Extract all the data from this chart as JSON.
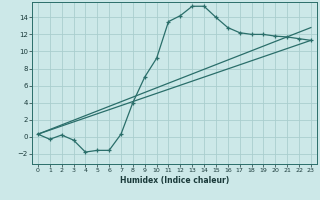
{
  "bg_color": "#cce8e8",
  "grid_color": "#aacece",
  "line_color": "#2a6e6a",
  "xlabel": "Humidex (Indice chaleur)",
  "xlim": [
    -0.5,
    23.5
  ],
  "ylim": [
    -3.2,
    15.8
  ],
  "xticks": [
    0,
    1,
    2,
    3,
    4,
    5,
    6,
    7,
    8,
    9,
    10,
    11,
    12,
    13,
    14,
    15,
    16,
    17,
    18,
    19,
    20,
    21,
    22,
    23
  ],
  "yticks": [
    -2,
    0,
    2,
    4,
    6,
    8,
    10,
    12,
    14
  ],
  "main_x": [
    0,
    1,
    2,
    3,
    4,
    5,
    6,
    7,
    8,
    9,
    10,
    11,
    12,
    13,
    14,
    15,
    16,
    17,
    18,
    19,
    20,
    21,
    22,
    23
  ],
  "main_y": [
    0.3,
    -0.3,
    0.2,
    -0.4,
    -1.8,
    -1.6,
    -1.6,
    0.3,
    4.0,
    7.0,
    9.2,
    13.5,
    14.2,
    15.3,
    15.3,
    14.0,
    12.8,
    12.2,
    12.0,
    12.0,
    11.8,
    11.7,
    11.5,
    11.3
  ],
  "line2_x": [
    0,
    23
  ],
  "line2_y": [
    0.3,
    11.3
  ],
  "line3_x": [
    0,
    23
  ],
  "line3_y": [
    0.3,
    12.8
  ]
}
